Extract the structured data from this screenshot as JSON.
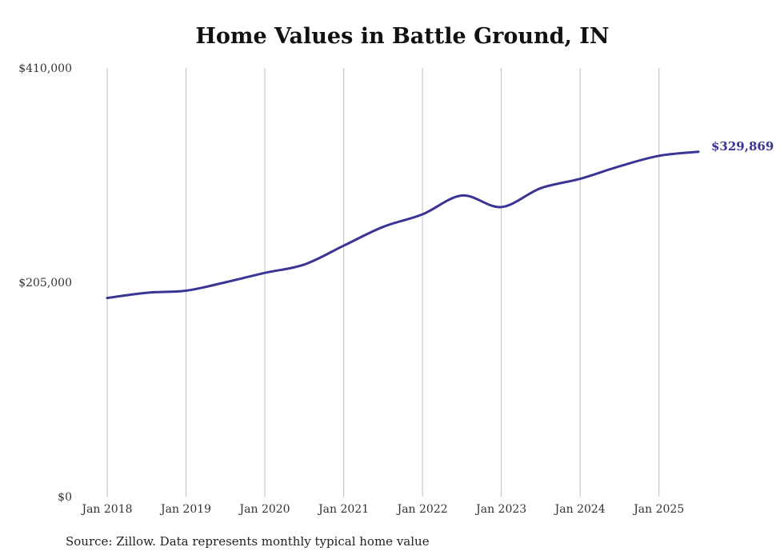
{
  "chart_data": {
    "type": "line",
    "title": "Home Values in Battle Ground, IN",
    "source": "Source: Zillow. Data represents monthly typical home value",
    "y_ticks": [
      {
        "value": 0,
        "label": "$0"
      },
      {
        "value": 205000,
        "label": "$205,000"
      },
      {
        "value": 410000,
        "label": "$410,000"
      }
    ],
    "ylim": [
      0,
      410000
    ],
    "x_ticks": [
      "Jan 2018",
      "Jan 2019",
      "Jan 2020",
      "Jan 2021",
      "Jan 2022",
      "Jan 2023",
      "Jan 2024",
      "Jan 2025"
    ],
    "xlim": [
      "Jan 2018",
      "Jul 2025"
    ],
    "grid": "vertical",
    "line_color": "#3a3594",
    "end_label": "$329,869",
    "series": [
      {
        "x": [
          "Jan 2018",
          "Jul 2018",
          "Jan 2019",
          "Jul 2019",
          "Jan 2020",
          "Jul 2020",
          "Jan 2021",
          "Jul 2021",
          "Jan 2022",
          "Jul 2022",
          "Jan 2023",
          "Jul 2023",
          "Jan 2024",
          "Jul 2024",
          "Jan 2025",
          "Jul 2025"
        ],
        "values": [
          190000,
          195000,
          197000,
          205000,
          214000,
          222000,
          240000,
          258000,
          270000,
          288000,
          277000,
          295000,
          304000,
          316000,
          326000,
          329869
        ]
      }
    ]
  }
}
